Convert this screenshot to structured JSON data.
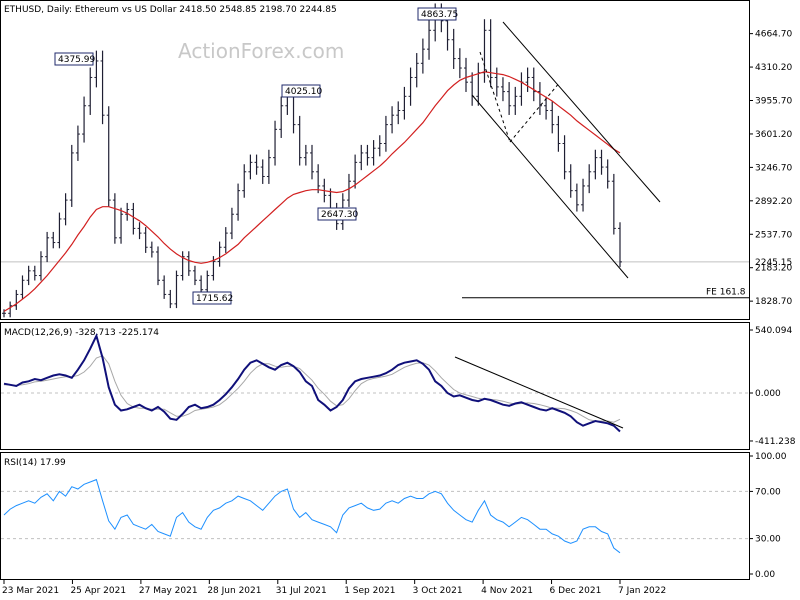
{
  "header": {
    "symbol_line": "ETHUSD, Daily:  Ethereum vs US Dollar  2418.50 2548.85 2198.70 2244.85",
    "watermark": "ActionForex.com"
  },
  "colors": {
    "price_bars": "#1f1f33",
    "ma_line": "#d22020",
    "macd_line": "#10107a",
    "signal_line": "#a8a8a8",
    "rsi_line": "#1e90ff",
    "grid": "#c0c0c0",
    "frame": "#000000"
  },
  "chart_data": [
    {
      "type": "line",
      "name": "price-panel",
      "title": "ETHUSD, Daily:  Ethereum vs US Dollar  2418.50 2548.85 2198.70 2244.85",
      "ylim": [
        1650,
        5000
      ],
      "y_ticks": [
        "4664.70",
        "4310.20",
        "3955.70",
        "3601.20",
        "3246.70",
        "2892.20",
        "2537.70",
        "2183.20",
        "1828.70"
      ],
      "current_price_label": "2245.15",
      "current_price": 2245.15,
      "fib_level": {
        "label": "FE 161.8",
        "value": 1865
      },
      "x_labels": [
        "23 Mar 2021",
        "25 Apr 2021",
        "27 May 2021",
        "28 Jun 2021",
        "31 Jul 2021",
        "1 Sep 2021",
        "3 Oct 2021",
        "4 Nov 2021",
        "6 Dec 2021",
        "7 Jan 2022"
      ],
      "annotations": [
        {
          "text": "4375.99",
          "value": 4375.99
        },
        {
          "text": "4025.10",
          "value": 4025.1
        },
        {
          "text": "4863.75",
          "value": 4863.75
        },
        {
          "text": "2647.30",
          "value": 2647.3
        },
        {
          "text": "1715.62",
          "value": 1715.62
        }
      ],
      "series": [
        {
          "values": [
            1700,
            1780,
            1900,
            2050,
            2150,
            2100,
            2300,
            2500,
            2450,
            2700,
            2900,
            3400,
            3600,
            3900,
            4200,
            4375,
            3800,
            2900,
            2500,
            2750,
            2800,
            2600,
            2550,
            2400,
            2350,
            2050,
            1900,
            1800,
            2100,
            2300,
            2150,
            2050,
            1950,
            2100,
            2250,
            2400,
            2550,
            2750,
            3000,
            3200,
            3300,
            3250,
            3150,
            3350,
            3650,
            3900,
            4025,
            3700,
            3350,
            3400,
            3200,
            3050,
            2950,
            2800,
            2650,
            2900,
            3100,
            3300,
            3400,
            3350,
            3450,
            3500,
            3700,
            3800,
            3850,
            4000,
            4200,
            4350,
            4500,
            4700,
            4863,
            4800,
            4600,
            4400,
            4300,
            4150,
            4000,
            4250,
            4700,
            4200,
            4100,
            4050,
            3900,
            4000,
            4150,
            4200,
            4050,
            3900,
            3850,
            3700,
            3500,
            3200,
            3000,
            2850,
            3050,
            3200,
            3350,
            3250,
            3100,
            2600,
            2245
          ]
        },
        {
          "name": "MA",
          "values": [
            1720,
            1760,
            1800,
            1850,
            1900,
            1960,
            2030,
            2100,
            2180,
            2260,
            2340,
            2430,
            2530,
            2620,
            2720,
            2800,
            2830,
            2830,
            2810,
            2790,
            2760,
            2720,
            2680,
            2630,
            2570,
            2510,
            2440,
            2380,
            2330,
            2290,
            2260,
            2240,
            2230,
            2240,
            2260,
            2290,
            2330,
            2380,
            2430,
            2500,
            2560,
            2620,
            2680,
            2740,
            2800,
            2860,
            2920,
            2960,
            2980,
            3000,
            3010,
            3010,
            3000,
            2990,
            2980,
            2990,
            3020,
            3060,
            3110,
            3160,
            3210,
            3260,
            3320,
            3390,
            3450,
            3510,
            3580,
            3650,
            3720,
            3810,
            3900,
            3980,
            4060,
            4120,
            4170,
            4200,
            4220,
            4240,
            4260,
            4250,
            4240,
            4230,
            4210,
            4180,
            4150,
            4110,
            4070,
            4030,
            3990,
            3950,
            3900,
            3850,
            3800,
            3740,
            3690,
            3640,
            3590,
            3540,
            3490,
            3440,
            3400
          ]
        }
      ]
    },
    {
      "type": "line",
      "name": "macd-panel",
      "title": "MACD(12,26,9) -328.713 -225.174",
      "ylim": [
        -480,
        600
      ],
      "y_ticks": [
        "540.094",
        "0.000",
        "-411.238"
      ],
      "series": [
        {
          "name": "MACD",
          "values": [
            80,
            70,
            60,
            90,
            100,
            120,
            110,
            130,
            150,
            160,
            150,
            130,
            200,
            280,
            380,
            490,
            300,
            50,
            -100,
            -150,
            -140,
            -120,
            -100,
            -130,
            -150,
            -120,
            -160,
            -220,
            -230,
            -180,
            -120,
            -100,
            -130,
            -120,
            -100,
            -60,
            -10,
            50,
            120,
            200,
            260,
            280,
            250,
            220,
            200,
            240,
            260,
            230,
            180,
            100,
            60,
            -60,
            -100,
            -150,
            -120,
            -60,
            40,
            100,
            120,
            130,
            140,
            150,
            170,
            200,
            240,
            260,
            270,
            280,
            250,
            200,
            100,
            60,
            0,
            -30,
            -20,
            -40,
            -60,
            -70,
            -50,
            -60,
            -80,
            -100,
            -110,
            -90,
            -80,
            -100,
            -120,
            -140,
            -150,
            -130,
            -150,
            -170,
            -200,
            -250,
            -280,
            -260,
            -240,
            -250,
            -260,
            -280,
            -330
          ]
        },
        {
          "name": "Signal",
          "values": [
            70,
            68,
            65,
            70,
            80,
            95,
            100,
            110,
            120,
            130,
            140,
            140,
            150,
            180,
            230,
            300,
            320,
            250,
            100,
            -20,
            -90,
            -120,
            -130,
            -130,
            -140,
            -140,
            -140,
            -170,
            -200,
            -200,
            -180,
            -150,
            -140,
            -130,
            -120,
            -100,
            -60,
            -10,
            40,
            100,
            170,
            220,
            250,
            250,
            230,
            220,
            230,
            230,
            210,
            160,
            110,
            40,
            -10,
            -70,
            -110,
            -100,
            -50,
            20,
            80,
            110,
            125,
            135,
            145,
            160,
            190,
            220,
            240,
            255,
            260,
            240,
            190,
            130,
            80,
            30,
            0,
            -15,
            -30,
            -45,
            -55,
            -55,
            -60,
            -70,
            -85,
            -95,
            -90,
            -85,
            -90,
            -100,
            -115,
            -130,
            -130,
            -135,
            -150,
            -170,
            -200,
            -230,
            -240,
            -240,
            -240,
            -250,
            -225
          ]
        }
      ]
    },
    {
      "type": "line",
      "name": "rsi-panel",
      "title": "RSI(14) 17.99",
      "ylim": [
        0,
        100
      ],
      "y_ticks": [
        "100.00",
        "70.00",
        "30.00",
        "0.00"
      ],
      "series": [
        {
          "name": "RSI",
          "values": [
            50,
            55,
            58,
            60,
            62,
            60,
            65,
            68,
            62,
            70,
            66,
            74,
            72,
            76,
            78,
            80,
            62,
            45,
            38,
            48,
            50,
            42,
            40,
            38,
            42,
            36,
            34,
            32,
            48,
            52,
            44,
            40,
            38,
            48,
            54,
            56,
            60,
            62,
            66,
            64,
            62,
            58,
            54,
            60,
            66,
            70,
            72,
            55,
            48,
            52,
            46,
            44,
            42,
            40,
            35,
            50,
            56,
            58,
            60,
            56,
            54,
            55,
            60,
            62,
            60,
            64,
            66,
            64,
            64,
            68,
            70,
            68,
            60,
            54,
            50,
            46,
            44,
            54,
            62,
            50,
            46,
            44,
            40,
            44,
            48,
            46,
            42,
            38,
            38,
            34,
            32,
            28,
            26,
            28,
            38,
            40,
            40,
            36,
            34,
            22,
            17.99
          ]
        }
      ]
    }
  ]
}
